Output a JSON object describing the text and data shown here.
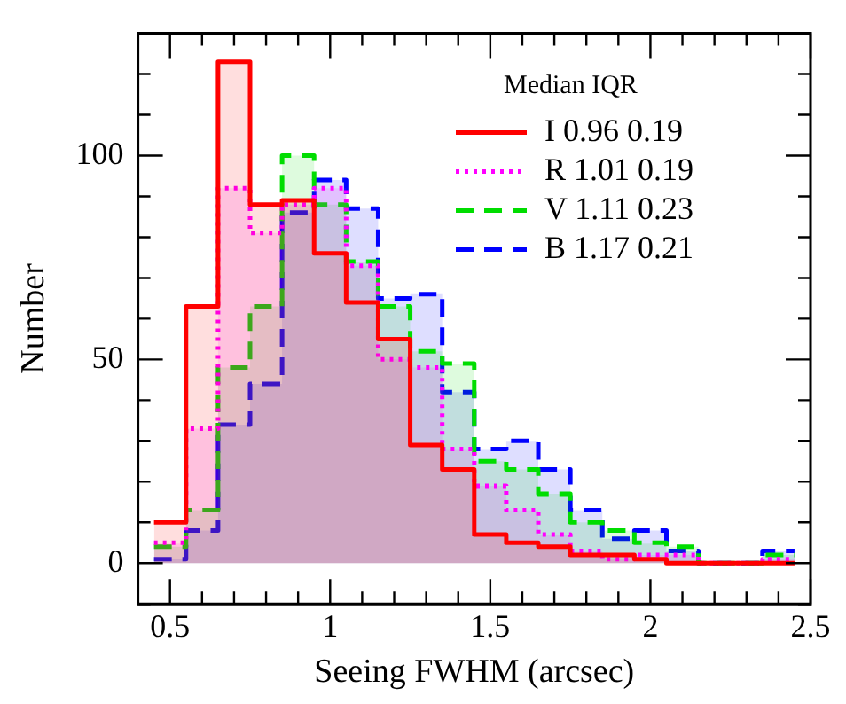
{
  "chart_data": {
    "type": "histogram",
    "xlabel": "Seeing FWHM (arcsec)",
    "ylabel": "Number",
    "legend_title": "Median IQR",
    "bins": [
      0.45,
      0.55,
      0.65,
      0.75,
      0.85,
      0.95,
      1.05,
      1.15,
      1.25,
      1.35,
      1.45,
      1.55,
      1.65,
      1.75,
      1.85,
      1.95,
      2.05,
      2.15,
      2.25,
      2.35,
      2.45
    ],
    "series": [
      {
        "name": "I 0.96 0.19",
        "color": "#ff0000",
        "line_style": "solid",
        "values": [
          10,
          63,
          123,
          88,
          89,
          76,
          64,
          55,
          29,
          23,
          7,
          5,
          4,
          2,
          2,
          1,
          0,
          0,
          0,
          0
        ]
      },
      {
        "name": "R 1.01 0.19",
        "color": "#ff00ff",
        "line_style": "dotted",
        "values": [
          5,
          33,
          92,
          81,
          88,
          92,
          73,
          50,
          48,
          28,
          19,
          13,
          7,
          3,
          1,
          2,
          2,
          0,
          0,
          1
        ]
      },
      {
        "name": "V 1.11 0.23",
        "color": "#00dd00",
        "line_style": "dashed",
        "values": [
          4,
          13,
          48,
          63,
          100,
          88,
          74,
          63,
          52,
          49,
          25,
          23,
          17,
          10,
          8,
          5,
          4,
          0,
          0,
          2
        ]
      },
      {
        "name": "B 1.17 0.21",
        "color": "#0000ff",
        "line_style": "dashed",
        "values": [
          1,
          8,
          34,
          44,
          86,
          94,
          87,
          65,
          66,
          42,
          28,
          30,
          23,
          13,
          6,
          8,
          3,
          0,
          0,
          3
        ]
      }
    ],
    "xlim": [
      0.4,
      2.5
    ],
    "xticks": [
      {
        "value": 0.4,
        "label": null
      },
      {
        "value": 0.5,
        "label": "0.5"
      },
      {
        "value": 0.6,
        "label": null
      },
      {
        "value": 0.7,
        "label": null
      },
      {
        "value": 0.8,
        "label": null
      },
      {
        "value": 0.9,
        "label": null
      },
      {
        "value": 1,
        "label": "1"
      },
      {
        "value": 1.1,
        "label": null
      },
      {
        "value": 1.2,
        "label": null
      },
      {
        "value": 1.3,
        "label": null
      },
      {
        "value": 1.4,
        "label": null
      },
      {
        "value": 1.5,
        "label": "1.5"
      },
      {
        "value": 1.6,
        "label": null
      },
      {
        "value": 1.7,
        "label": null
      },
      {
        "value": 1.8,
        "label": null
      },
      {
        "value": 1.9,
        "label": null
      },
      {
        "value": 2,
        "label": "2"
      },
      {
        "value": 2.1,
        "label": null
      },
      {
        "value": 2.2,
        "label": null
      },
      {
        "value": 2.3,
        "label": null
      },
      {
        "value": 2.4,
        "label": null
      },
      {
        "value": 2.5,
        "label": "2.5"
      }
    ],
    "ylim": [
      -10,
      130
    ],
    "yticks": [
      {
        "value": -10,
        "label": null
      },
      0,
      {
        "value": 10,
        "label": null
      },
      {
        "value": 20,
        "label": null
      },
      {
        "value": 30,
        "label": null
      },
      {
        "value": 40,
        "label": null
      },
      50,
      {
        "value": 60,
        "label": null
      },
      {
        "value": 70,
        "label": null
      },
      {
        "value": 80,
        "label": null
      },
      {
        "value": 90,
        "label": null
      },
      100,
      {
        "value": 110,
        "label": null
      },
      {
        "value": 120,
        "label": null
      },
      {
        "value": 130,
        "label": null
      }
    ],
    "legend": "top right",
    "grid": false
  }
}
